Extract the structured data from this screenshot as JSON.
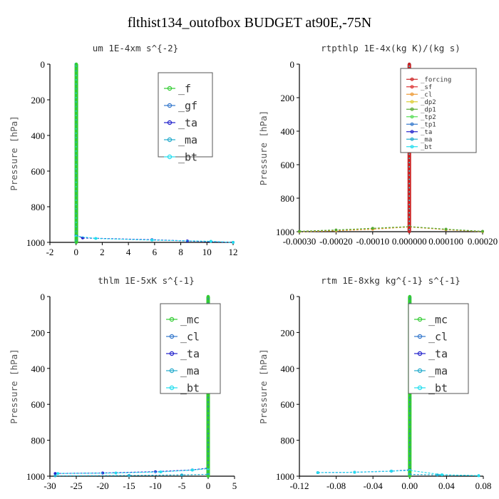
{
  "figure_title": "flthist134_outofbox  BUDGET at90E,-75N",
  "chart_data": [
    {
      "type": "line",
      "title": "um  1E-4xm s^{-2}",
      "ylabel": "Pressure [hPa]",
      "xlim": [
        -2,
        12
      ],
      "ylim": [
        1000,
        0
      ],
      "xticks": [
        "-2",
        "0",
        "2",
        "4",
        "6",
        "8",
        "10",
        "12"
      ],
      "xtick_values": [
        -2,
        0,
        2,
        4,
        6,
        8,
        10,
        12
      ],
      "yticks": [
        "0",
        "200",
        "400",
        "600",
        "800",
        "1000"
      ],
      "legend_position": "top-right",
      "series": [
        {
          "name": "_f",
          "color": "#33cc33",
          "x": [
            0.02,
            0.02,
            0.02,
            0.02,
            0.02,
            0.02,
            0.02
          ],
          "y": [
            0,
            200,
            400,
            600,
            800,
            960,
            1000
          ]
        },
        {
          "name": "_gf",
          "color": "#3377cc",
          "x": [
            0,
            0,
            0,
            0,
            0,
            0
          ],
          "y": [
            0,
            200,
            400,
            600,
            800,
            1000
          ]
        },
        {
          "name": "_ta",
          "color": "#2222cc",
          "x": [
            0,
            0,
            0.5,
            5.8,
            8.5,
            12
          ],
          "y": [
            0,
            960,
            975,
            985,
            992,
            1000
          ]
        },
        {
          "name": "_ma",
          "color": "#22aacc",
          "x": [
            0,
            0,
            0,
            0
          ],
          "y": [
            0,
            500,
            900,
            1000
          ]
        },
        {
          "name": "_bt",
          "color": "#22ddee",
          "x": [
            0,
            0,
            1.5,
            5.8,
            10.3,
            12
          ],
          "y": [
            0,
            965,
            978,
            987,
            994,
            1000
          ]
        }
      ]
    },
    {
      "type": "line",
      "title": "rtpthlp  1E-4x(kg K)/(kg s)",
      "ylabel": "Pressure [hPa]",
      "xlim": [
        -0.0003,
        0.0002
      ],
      "ylim": [
        1000,
        0
      ],
      "xticks": [
        "-0.00030",
        "-0.00020",
        "-0.00010",
        "0.000000",
        "0.000100",
        "0.00020"
      ],
      "xtick_values": [
        -0.0003,
        -0.0002,
        -0.0001,
        0,
        0.0001,
        0.0002
      ],
      "yticks": [
        "0",
        "200",
        "400",
        "600",
        "800",
        "1000"
      ],
      "legend_position": "top-right",
      "series": [
        {
          "name": "_forcing",
          "color": "#cc2222",
          "x": [
            0,
            0,
            0,
            0,
            0,
            0
          ],
          "y": [
            0,
            200,
            400,
            600,
            800,
            1000
          ]
        },
        {
          "name": "_sf",
          "color": "#dd3333",
          "x": [
            0,
            0,
            0
          ],
          "y": [
            0,
            500,
            1000
          ]
        },
        {
          "name": "_cl",
          "color": "#ee9933",
          "x": [
            -0.0003,
            -0.0002,
            -0.0001,
            0,
            0.0001,
            0.0002
          ],
          "y": [
            1000,
            995,
            985,
            972,
            988,
            1000
          ]
        },
        {
          "name": "_dp2",
          "color": "#ddcc33",
          "x": [
            0,
            0,
            0
          ],
          "y": [
            0,
            500,
            1000
          ]
        },
        {
          "name": "_dp1",
          "color": "#55aa33",
          "x": [
            -0.0003,
            -0.0002,
            -0.0001,
            0,
            0.0001,
            0.0002
          ],
          "y": [
            998,
            990,
            980,
            970,
            985,
            998
          ]
        },
        {
          "name": "_tp2",
          "color": "#55dd55",
          "x": [
            0,
            0,
            0
          ],
          "y": [
            0,
            500,
            1000
          ]
        },
        {
          "name": "_tp1",
          "color": "#3377cc",
          "x": [
            0,
            0,
            0
          ],
          "y": [
            0,
            500,
            1000
          ]
        },
        {
          "name": "_ta",
          "color": "#2222cc",
          "x": [
            0,
            0,
            0
          ],
          "y": [
            0,
            500,
            1000
          ]
        },
        {
          "name": "_ma",
          "color": "#22aacc",
          "x": [
            0,
            0,
            0
          ],
          "y": [
            0,
            500,
            1000
          ]
        },
        {
          "name": "_bt",
          "color": "#22ddee",
          "x": [
            0,
            0,
            0
          ],
          "y": [
            0,
            500,
            1000
          ]
        }
      ]
    },
    {
      "type": "line",
      "title": "thlm  1E-5xK s^{-1}",
      "ylabel": "Pressure [hPa]",
      "xlim": [
        -30,
        5
      ],
      "ylim": [
        1000,
        0
      ],
      "xticks": [
        "-30",
        "-25",
        "-20",
        "-15",
        "-10",
        "-5",
        "0",
        "5"
      ],
      "xtick_values": [
        -30,
        -25,
        -20,
        -15,
        -10,
        -5,
        0,
        5
      ],
      "yticks": [
        "0",
        "200",
        "400",
        "600",
        "800",
        "1000"
      ],
      "legend_position": "top-right",
      "series": [
        {
          "name": "_mc",
          "color": "#33cc33",
          "x": [
            0,
            0,
            0,
            0,
            0,
            0
          ],
          "y": [
            0,
            200,
            400,
            600,
            800,
            1000
          ]
        },
        {
          "name": "_cl",
          "color": "#3377cc",
          "x": [
            0,
            0,
            0
          ],
          "y": [
            0,
            500,
            1000
          ]
        },
        {
          "name": "_ta",
          "color": "#2222cc",
          "x": [
            -29,
            -20,
            -10,
            -3,
            0
          ],
          "y": [
            985,
            982,
            975,
            965,
            955
          ]
        },
        {
          "name": "_ma",
          "color": "#22aacc",
          "x": [
            -29,
            -15,
            -5,
            0
          ],
          "y": [
            998,
            996,
            993,
            990
          ]
        },
        {
          "name": "_bt",
          "color": "#22ddee",
          "x": [
            -28.5,
            -17.5,
            -9,
            -3,
            0
          ],
          "y": [
            985,
            982,
            976,
            966,
            958
          ]
        }
      ]
    },
    {
      "type": "line",
      "title": "rtm  1E-8xkg kg^{-1} s^{-1}",
      "ylabel": "Pressure [hPa]",
      "xlim": [
        -0.12,
        0.08
      ],
      "ylim": [
        1000,
        0
      ],
      "xticks": [
        "-0.12",
        "-0.08",
        "-0.04",
        "0.00",
        "0.04",
        "0.08"
      ],
      "xtick_values": [
        -0.12,
        -0.08,
        -0.04,
        0,
        0.04,
        0.08
      ],
      "yticks": [
        "0",
        "200",
        "400",
        "600",
        "800",
        "1000"
      ],
      "legend_position": "top-right",
      "series": [
        {
          "name": "_mc",
          "color": "#33cc33",
          "x": [
            0,
            0,
            0,
            0,
            0,
            0
          ],
          "y": [
            0,
            200,
            400,
            600,
            800,
            1000
          ]
        },
        {
          "name": "_cl",
          "color": "#3377cc",
          "x": [
            0,
            0,
            0
          ],
          "y": [
            0,
            500,
            1000
          ]
        },
        {
          "name": "_ta",
          "color": "#2222cc",
          "x": [
            -0.1,
            -0.06,
            -0.02,
            0
          ],
          "y": [
            980,
            978,
            972,
            965
          ]
        },
        {
          "name": "_ma",
          "color": "#22aacc",
          "x": [
            0,
            0.03,
            0.075
          ],
          "y": [
            990,
            993,
            997
          ]
        },
        {
          "name": "_bt",
          "color": "#22ddee",
          "x": [
            -0.1,
            -0.06,
            -0.02,
            0,
            0.035,
            0.075
          ],
          "y": [
            980,
            978,
            972,
            968,
            992,
            997
          ]
        }
      ]
    }
  ]
}
